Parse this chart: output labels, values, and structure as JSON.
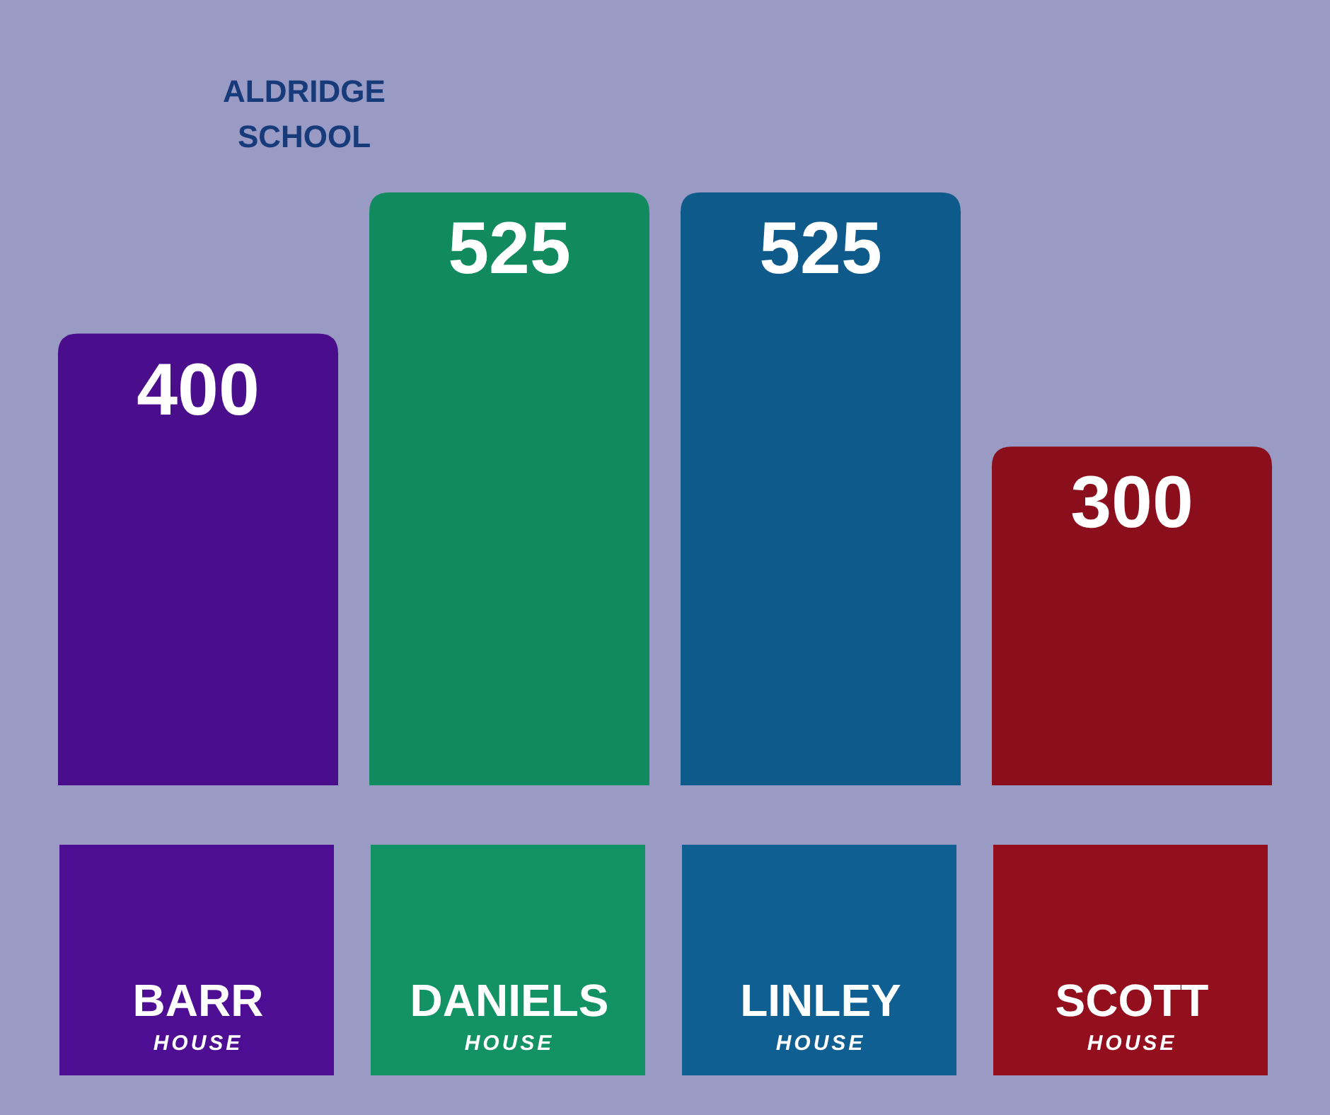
{
  "chart_data": {
    "type": "bar",
    "title": "ALDRIDGE SCHOOL",
    "categories": [
      "BARR HOUSE",
      "DANIELS HOUSE",
      "LINLEY HOUSE",
      "SCOTT HOUSE"
    ],
    "values": [
      400,
      525,
      525,
      300
    ],
    "colors": [
      "#4a0d8c",
      "#128a60",
      "#0e5a8a",
      "#8b0e1c"
    ],
    "data_labels": true
  }
}
